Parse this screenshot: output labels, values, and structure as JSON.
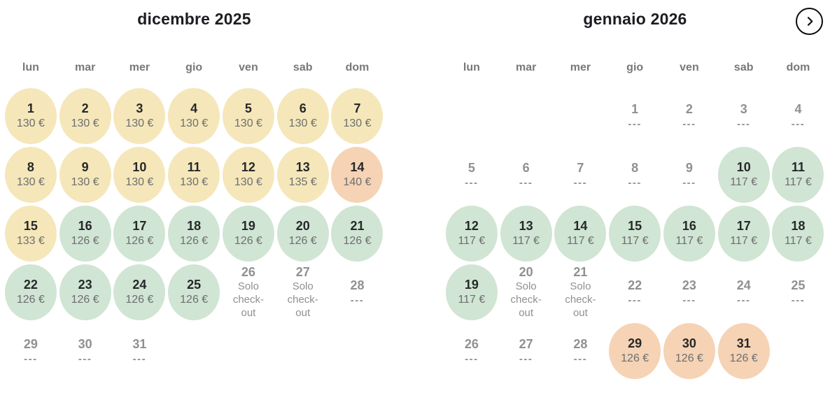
{
  "labels": {
    "checkout": "Solo check-out",
    "unavailable": "---"
  },
  "colors": {
    "yellow": "#f5e7b9",
    "green": "#d0e5d3",
    "peach": "#f5d3b4",
    "title": "#1b1d20",
    "weekday": "#77787a",
    "day_dark": "#26282b",
    "day_gray": "#8f9092",
    "price": "#6d6e70",
    "button_border": "#0c0c0c"
  },
  "weekdays": [
    "lun",
    "mar",
    "mer",
    "gio",
    "ven",
    "sab",
    "dom"
  ],
  "icons": {
    "next": "chevron-right-icon"
  },
  "months": [
    {
      "title": "dicembre 2025",
      "weeks": [
        [
          {
            "day": "1",
            "price": "130 €",
            "state": "yellow"
          },
          {
            "day": "2",
            "price": "130 €",
            "state": "yellow"
          },
          {
            "day": "3",
            "price": "130 €",
            "state": "yellow"
          },
          {
            "day": "4",
            "price": "130 €",
            "state": "yellow"
          },
          {
            "day": "5",
            "price": "130 €",
            "state": "yellow"
          },
          {
            "day": "6",
            "price": "130 €",
            "state": "yellow"
          },
          {
            "day": "7",
            "price": "130 €",
            "state": "yellow"
          }
        ],
        [
          {
            "day": "8",
            "price": "130 €",
            "state": "yellow"
          },
          {
            "day": "9",
            "price": "130 €",
            "state": "yellow"
          },
          {
            "day": "10",
            "price": "130 €",
            "state": "yellow"
          },
          {
            "day": "11",
            "price": "130 €",
            "state": "yellow"
          },
          {
            "day": "12",
            "price": "130 €",
            "state": "yellow"
          },
          {
            "day": "13",
            "price": "135 €",
            "state": "yellow"
          },
          {
            "day": "14",
            "price": "140 €",
            "state": "peach"
          }
        ],
        [
          {
            "day": "15",
            "price": "133 €",
            "state": "yellow"
          },
          {
            "day": "16",
            "price": "126 €",
            "state": "green"
          },
          {
            "day": "17",
            "price": "126 €",
            "state": "green"
          },
          {
            "day": "18",
            "price": "126 €",
            "state": "green"
          },
          {
            "day": "19",
            "price": "126 €",
            "state": "green"
          },
          {
            "day": "20",
            "price": "126 €",
            "state": "green"
          },
          {
            "day": "21",
            "price": "126 €",
            "state": "green"
          }
        ],
        [
          {
            "day": "22",
            "price": "126 €",
            "state": "green"
          },
          {
            "day": "23",
            "price": "126 €",
            "state": "green"
          },
          {
            "day": "24",
            "price": "126 €",
            "state": "green"
          },
          {
            "day": "25",
            "price": "126 €",
            "state": "green"
          },
          {
            "day": "26",
            "state": "checkout"
          },
          {
            "day": "27",
            "state": "checkout"
          },
          {
            "day": "28",
            "state": "unavailable"
          }
        ],
        [
          {
            "day": "29",
            "state": "unavailable"
          },
          {
            "day": "30",
            "state": "unavailable"
          },
          {
            "day": "31",
            "state": "unavailable"
          },
          {
            "state": "empty"
          },
          {
            "state": "empty"
          },
          {
            "state": "empty"
          },
          {
            "state": "empty"
          }
        ]
      ]
    },
    {
      "title": "gennaio 2026",
      "weeks": [
        [
          {
            "state": "empty"
          },
          {
            "state": "empty"
          },
          {
            "state": "empty"
          },
          {
            "day": "1",
            "state": "unavailable"
          },
          {
            "day": "2",
            "state": "unavailable"
          },
          {
            "day": "3",
            "state": "unavailable"
          },
          {
            "day": "4",
            "state": "unavailable"
          }
        ],
        [
          {
            "day": "5",
            "state": "unavailable"
          },
          {
            "day": "6",
            "state": "unavailable"
          },
          {
            "day": "7",
            "state": "unavailable"
          },
          {
            "day": "8",
            "state": "unavailable"
          },
          {
            "day": "9",
            "state": "unavailable"
          },
          {
            "day": "10",
            "price": "117 €",
            "state": "green"
          },
          {
            "day": "11",
            "price": "117 €",
            "state": "green"
          }
        ],
        [
          {
            "day": "12",
            "price": "117 €",
            "state": "green"
          },
          {
            "day": "13",
            "price": "117 €",
            "state": "green"
          },
          {
            "day": "14",
            "price": "117 €",
            "state": "green"
          },
          {
            "day": "15",
            "price": "117 €",
            "state": "green"
          },
          {
            "day": "16",
            "price": "117 €",
            "state": "green"
          },
          {
            "day": "17",
            "price": "117 €",
            "state": "green"
          },
          {
            "day": "18",
            "price": "117 €",
            "state": "green"
          }
        ],
        [
          {
            "day": "19",
            "price": "117 €",
            "state": "green"
          },
          {
            "day": "20",
            "state": "checkout"
          },
          {
            "day": "21",
            "state": "checkout"
          },
          {
            "day": "22",
            "state": "unavailable"
          },
          {
            "day": "23",
            "state": "unavailable"
          },
          {
            "day": "24",
            "state": "unavailable"
          },
          {
            "day": "25",
            "state": "unavailable"
          }
        ],
        [
          {
            "day": "26",
            "state": "unavailable"
          },
          {
            "day": "27",
            "state": "unavailable"
          },
          {
            "day": "28",
            "state": "unavailable"
          },
          {
            "day": "29",
            "price": "126 €",
            "state": "peach"
          },
          {
            "day": "30",
            "price": "126 €",
            "state": "peach"
          },
          {
            "day": "31",
            "price": "126 €",
            "state": "peach"
          },
          {
            "state": "empty"
          }
        ]
      ]
    }
  ]
}
